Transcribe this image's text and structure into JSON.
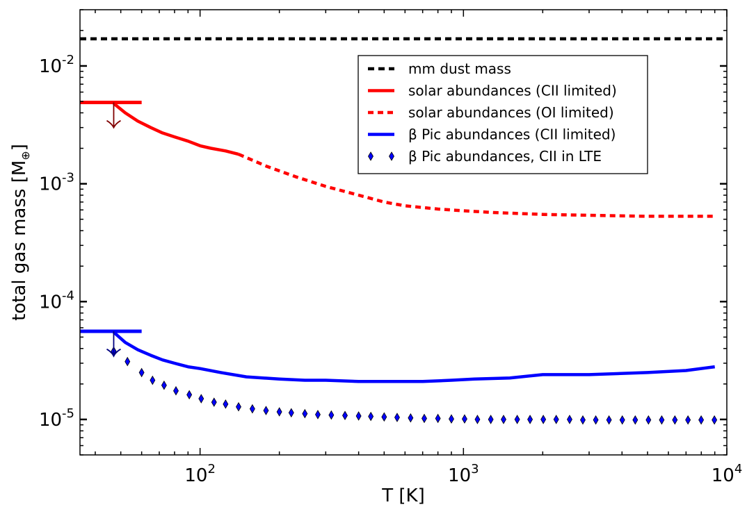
{
  "chart_data": {
    "type": "line",
    "xscale": "log",
    "yscale": "log",
    "xlim": [
      35,
      10000
    ],
    "ylim": [
      5e-06,
      0.03
    ],
    "xlabel": "T [K]",
    "ylabel": "total gas mass [M",
    "ylabel_unit_symbol": "⊕",
    "ylabel_close": "]",
    "x_tick_labels": [
      {
        "value": 100,
        "base": "10",
        "exp": "2"
      },
      {
        "value": 1000,
        "base": "10",
        "exp": "3"
      },
      {
        "value": 10000,
        "base": "10",
        "exp": "4"
      }
    ],
    "y_tick_labels": [
      {
        "value": 1e-05,
        "base": "10",
        "exp": "-5"
      },
      {
        "value": 0.0001,
        "base": "10",
        "exp": "-4"
      },
      {
        "value": 0.001,
        "base": "10",
        "exp": "-3"
      },
      {
        "value": 0.01,
        "base": "10",
        "exp": "-2"
      }
    ],
    "legend_position": "upper-right",
    "series": [
      {
        "name": "mm dust mass",
        "style": "dashed",
        "color": "#000000",
        "x": [
          35,
          10000
        ],
        "y": [
          0.017,
          0.017
        ]
      },
      {
        "name": "solar abundances (CII limited)",
        "style": "solid",
        "color": "#ff0000",
        "x": [
          47,
          52,
          58,
          65,
          72,
          80,
          90,
          100,
          110,
          125,
          140
        ],
        "y": [
          0.0048,
          0.004,
          0.0034,
          0.003,
          0.0027,
          0.0025,
          0.0023,
          0.0021,
          0.002,
          0.0019,
          0.00178
        ]
      },
      {
        "name": "solar abundances (OI limited)",
        "style": "dotted",
        "color": "#ff0000",
        "x": [
          140,
          180,
          230,
          300,
          400,
          500,
          600,
          800,
          1000,
          1300,
          2000,
          3000,
          5000,
          9000
        ],
        "y": [
          0.00178,
          0.0014,
          0.00115,
          0.00095,
          0.0008,
          0.0007,
          0.00065,
          0.00061,
          0.00059,
          0.00057,
          0.00055,
          0.00054,
          0.00053,
          0.00053
        ]
      },
      {
        "name": "β Pic abundances (CII limited)",
        "style": "solid",
        "color": "#0000ff",
        "x": [
          47,
          52,
          58,
          65,
          72,
          80,
          90,
          100,
          120,
          150,
          200,
          250,
          300,
          400,
          500,
          700,
          900,
          1100,
          1500,
          2000,
          3000,
          5000,
          7000,
          9000
        ],
        "y": [
          5.5e-05,
          4.5e-05,
          3.9e-05,
          3.5e-05,
          3.2e-05,
          3e-05,
          2.8e-05,
          2.7e-05,
          2.5e-05,
          2.3e-05,
          2.2e-05,
          2.15e-05,
          2.15e-05,
          2.1e-05,
          2.1e-05,
          2.1e-05,
          2.15e-05,
          2.2e-05,
          2.25e-05,
          2.4e-05,
          2.4e-05,
          2.5e-05,
          2.6e-05,
          2.8e-05
        ]
      },
      {
        "name": "β Pic abundances, CII in LTE",
        "style": "markers",
        "color": "#0000ff",
        "x": [
          47,
          53,
          60,
          66,
          73,
          81,
          91,
          101,
          113,
          125,
          140,
          158,
          178,
          200,
          222,
          250,
          280,
          315,
          355,
          400,
          445,
          500,
          560,
          630,
          710,
          800,
          900,
          1010,
          1130,
          1270,
          1420,
          1600,
          1790,
          2010,
          2250,
          2530,
          2840,
          3180,
          3570,
          4010,
          4490,
          5040,
          5660,
          6350,
          7120,
          7990,
          8970
        ],
        "y": [
          3.8e-05,
          3.1e-05,
          2.5e-05,
          2.15e-05,
          1.95e-05,
          1.75e-05,
          1.62e-05,
          1.5e-05,
          1.4e-05,
          1.35e-05,
          1.28e-05,
          1.23e-05,
          1.19e-05,
          1.16e-05,
          1.14e-05,
          1.12e-05,
          1.1e-05,
          1.09e-05,
          1.08e-05,
          1.07e-05,
          1.06e-05,
          1.05e-05,
          1.04e-05,
          1.03e-05,
          1.02e-05,
          1.02e-05,
          1.01e-05,
          1.01e-05,
          1e-05,
          1e-05,
          1e-05,
          1e-05,
          1e-05,
          1e-05,
          1e-05,
          1e-05,
          9.9e-06,
          9.9e-06,
          9.9e-06,
          9.9e-06,
          9.9e-06,
          9.9e-06,
          9.9e-06,
          9.9e-06,
          9.9e-06,
          9.9e-06,
          9.9e-06
        ]
      }
    ],
    "upper_limits": [
      {
        "color": "#ff0000",
        "arrow_color": "#800000",
        "x_start": 35,
        "x_end": 60,
        "y": 0.0049,
        "arrow_x": 47,
        "arrow_to_y": 0.003
      },
      {
        "color": "#0000ff",
        "arrow_color": "#000080",
        "x_start": 35,
        "x_end": 60,
        "y": 5.6e-05,
        "arrow_x": 47,
        "arrow_to_y": 3.45e-05
      }
    ]
  }
}
